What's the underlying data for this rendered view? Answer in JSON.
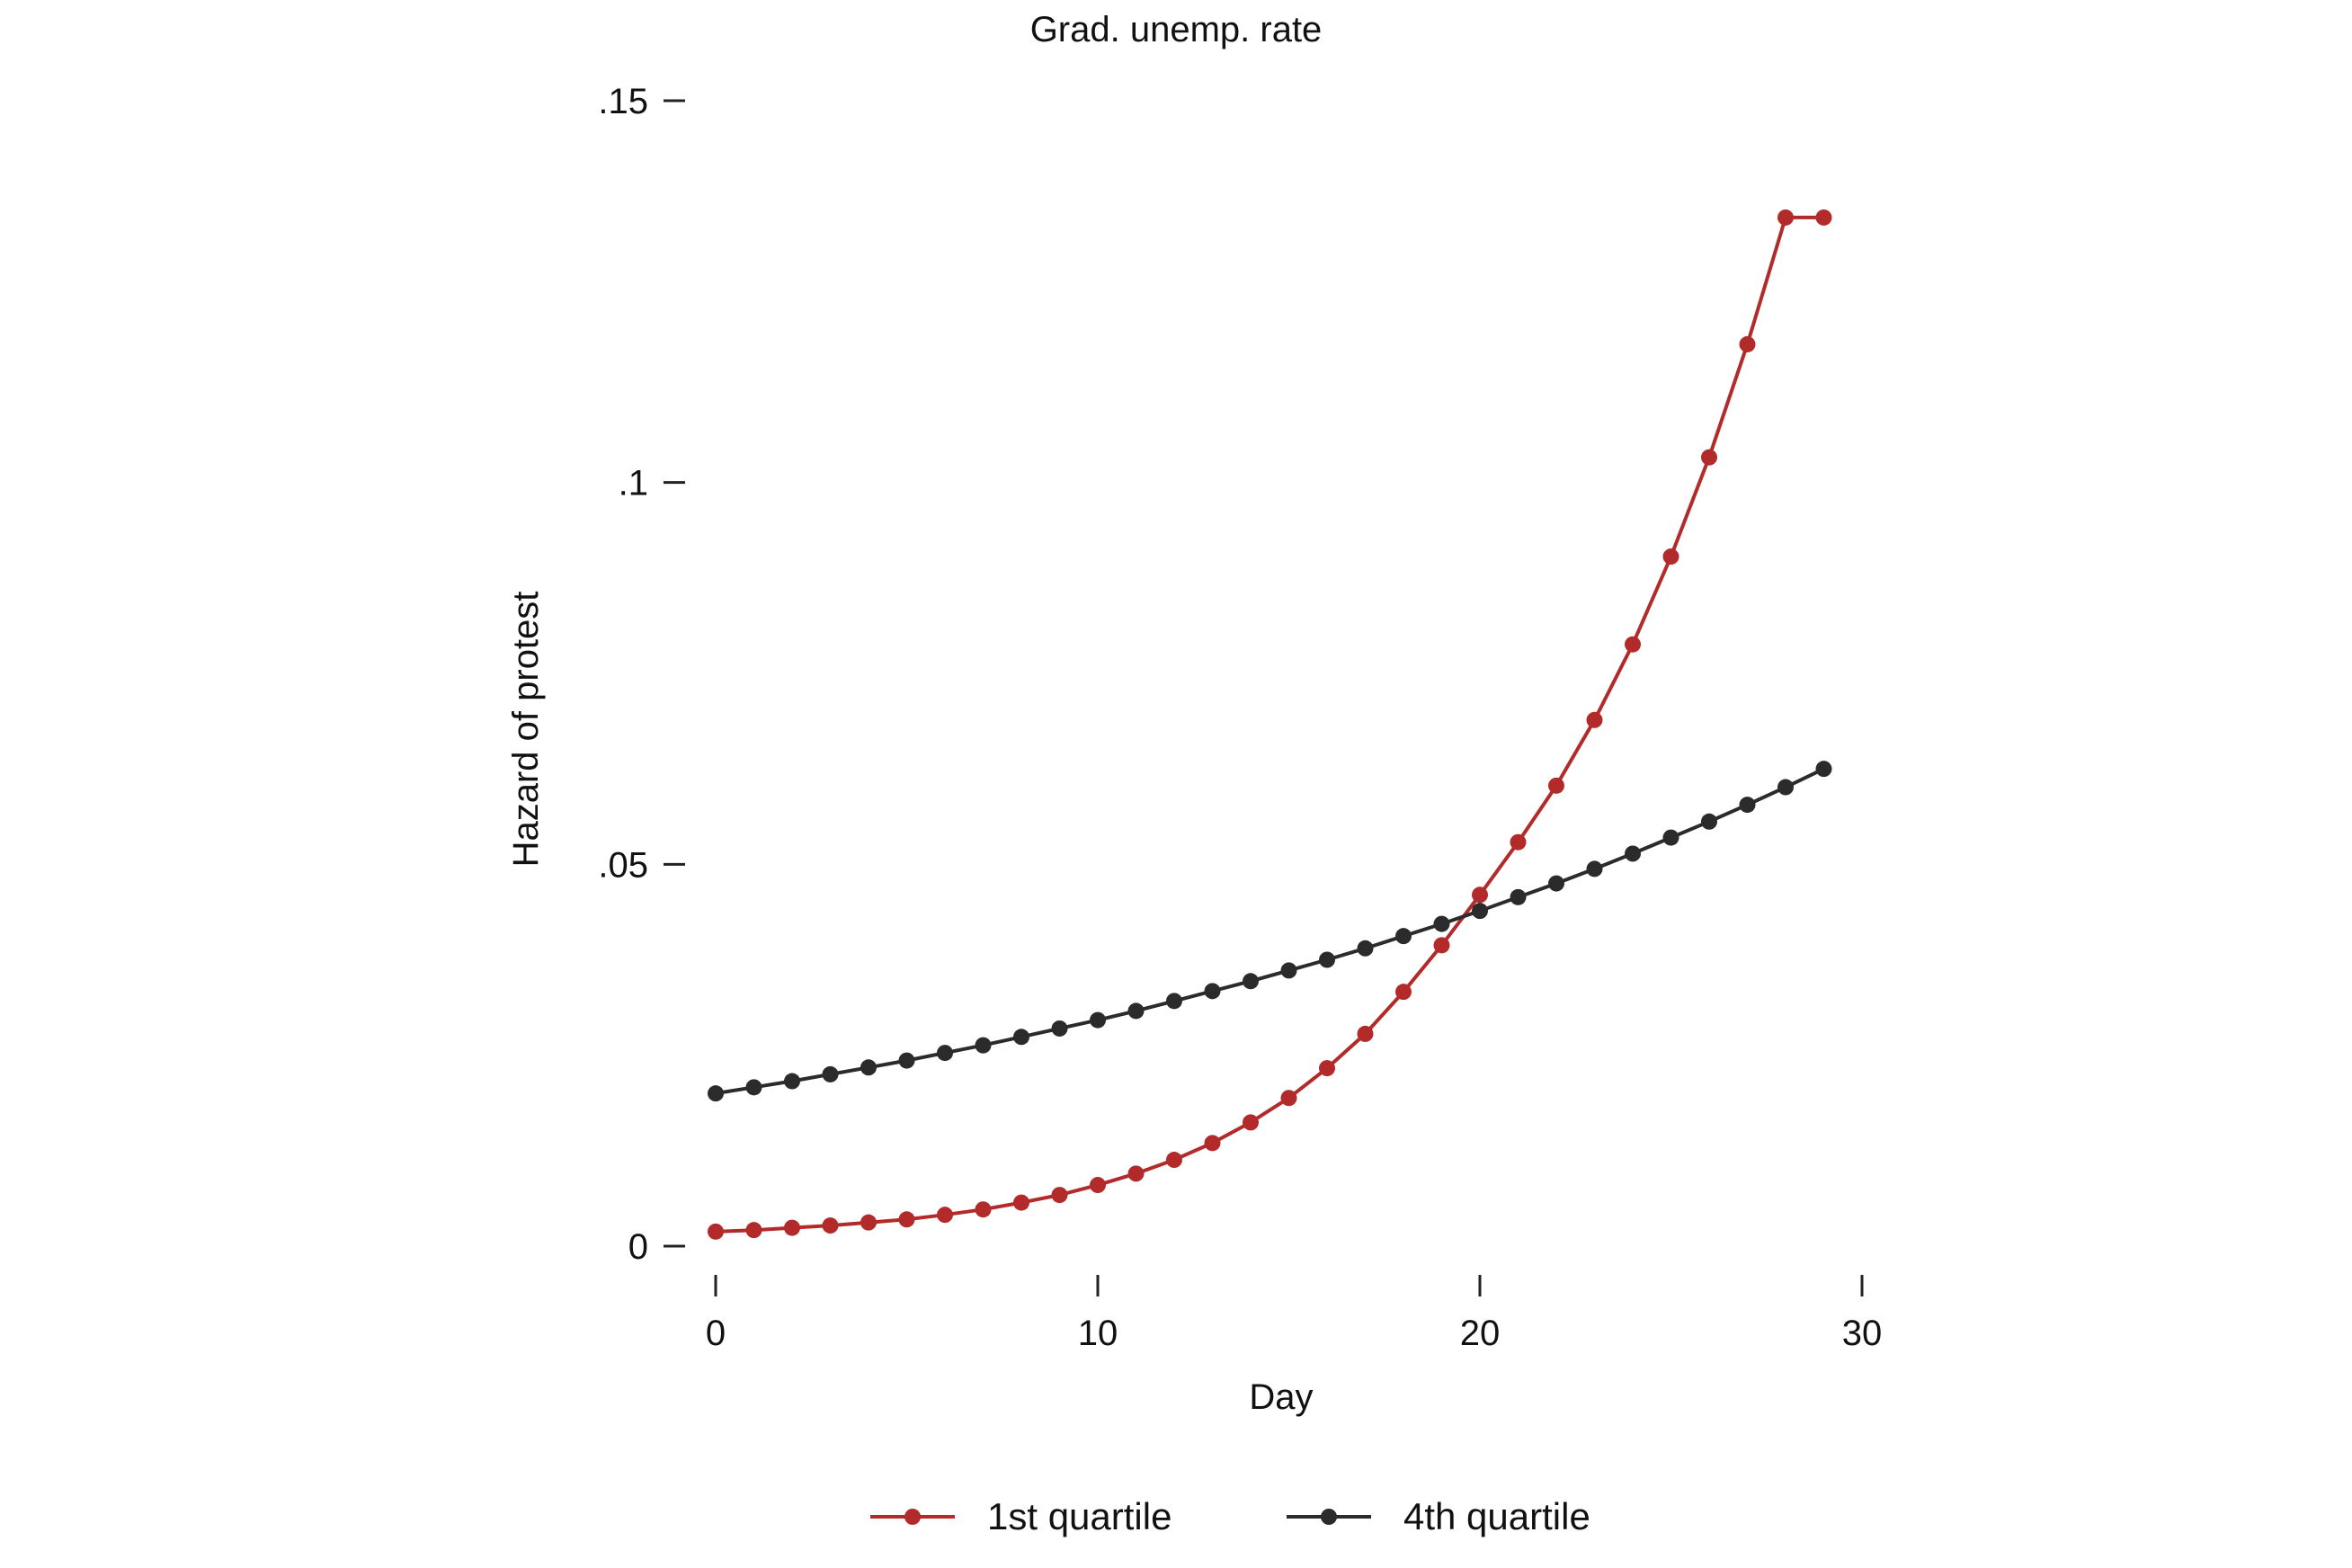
{
  "chart_data": {
    "type": "line",
    "title": "Grad. unemp. rate",
    "xlabel": "Day",
    "ylabel": "Hazard of protest",
    "xlim": [
      0,
      30
    ],
    "ylim": [
      0,
      0.15
    ],
    "xticks": [
      0,
      10,
      20,
      30
    ],
    "xtick_labels": [
      "0",
      "10",
      "20",
      "30"
    ],
    "yticks": [
      0,
      0.05,
      0.1,
      0.15
    ],
    "ytick_labels": [
      "0",
      ".05",
      ".1",
      ".15"
    ],
    "grid": false,
    "legend_position": "bottom",
    "x": [
      0,
      1,
      2,
      3,
      4,
      5,
      6,
      7,
      8,
      9,
      10,
      11,
      12,
      13,
      14,
      15,
      16,
      17,
      18,
      19,
      20,
      21,
      22,
      23,
      24,
      25,
      26,
      27,
      28,
      29
    ],
    "series": [
      {
        "name": "1st quartile",
        "color": "#b22a2a",
        "marker": "circle",
        "values": [
          0.0019,
          0.0021,
          0.0024,
          0.0027,
          0.0031,
          0.0035,
          0.0041,
          0.0048,
          0.0057,
          0.0067,
          0.008,
          0.0095,
          0.0113,
          0.0135,
          0.0162,
          0.0194,
          0.0233,
          0.0278,
          0.0333,
          0.0394,
          0.046,
          0.0529,
          0.0603,
          0.0689,
          0.0788,
          0.0903,
          0.1033,
          0.1181,
          0.1347,
          0.1347
        ]
      },
      {
        "name": "4th quartile",
        "color": "#2b2b2b",
        "marker": "circle",
        "values": [
          0.02,
          0.0208,
          0.0216,
          0.0225,
          0.0234,
          0.0243,
          0.0253,
          0.0263,
          0.0274,
          0.0285,
          0.0296,
          0.0308,
          0.0321,
          0.0334,
          0.0347,
          0.0361,
          0.0375,
          0.039,
          0.0406,
          0.0422,
          0.0439,
          0.0457,
          0.0475,
          0.0494,
          0.0514,
          0.0535,
          0.0556,
          0.0578,
          0.0601,
          0.0625
        ]
      }
    ]
  }
}
